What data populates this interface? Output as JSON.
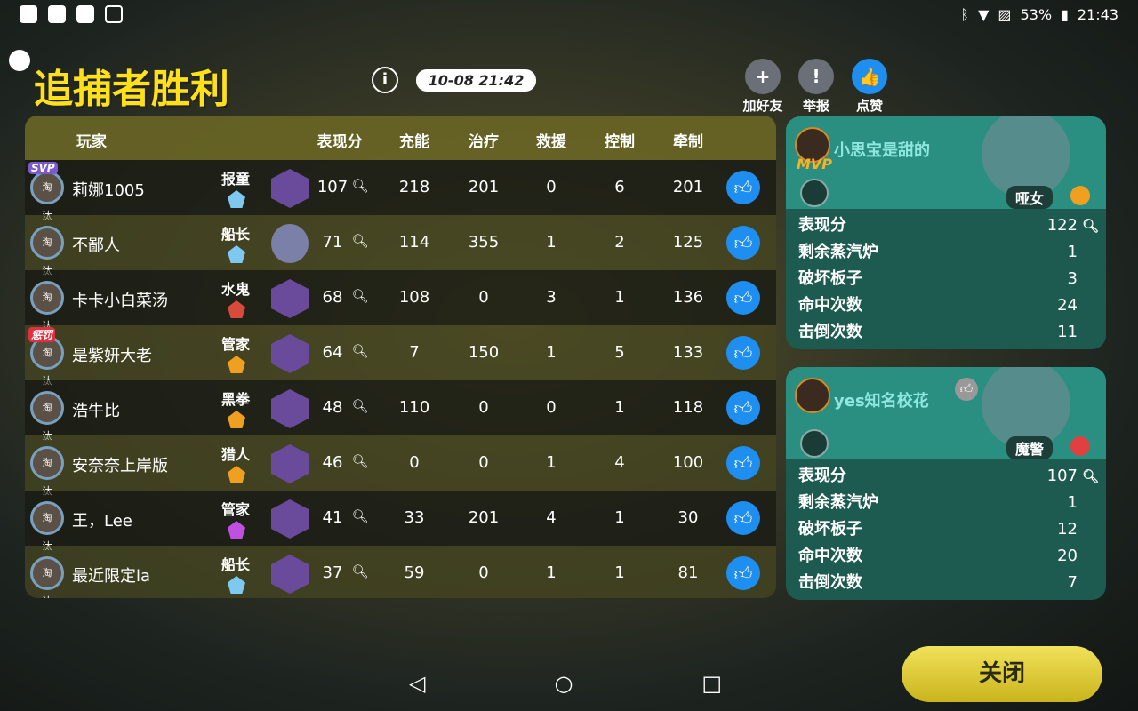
{
  "status": {
    "battery": "53%",
    "time": "21:43"
  },
  "title": "追捕者胜利",
  "match_time": "10-08  21:42",
  "top_actions": [
    {
      "label": "加好友",
      "icon": "add-friend-icon"
    },
    {
      "label": "举报",
      "icon": "report-icon"
    },
    {
      "label": "点赞",
      "icon": "thumbs-up-icon"
    }
  ],
  "table": {
    "headers": [
      "玩家",
      "表现分",
      "充能",
      "治疗",
      "救援",
      "控制",
      "牵制"
    ],
    "rows": [
      {
        "badge": "SVP",
        "status": "淘汰",
        "name": "莉娜1005",
        "role": "报童",
        "rank_color": "#7fc8f0",
        "score": "107",
        "charge": "218",
        "heal": "201",
        "rescue": "0",
        "control": "6",
        "contain": "201"
      },
      {
        "badge": "",
        "status": "淘汰",
        "name": "不鄙人",
        "role": "船长",
        "rank_color": "#7fc8f0",
        "score": "71",
        "charge": "114",
        "heal": "355",
        "rescue": "1",
        "control": "2",
        "contain": "125",
        "unknown": true
      },
      {
        "badge": "",
        "status": "淘汰",
        "name": "卡卡小白菜汤",
        "role": "水鬼",
        "rank_color": "#d84a3a",
        "score": "68",
        "charge": "108",
        "heal": "0",
        "rescue": "3",
        "control": "1",
        "contain": "136"
      },
      {
        "badge": "惩罚",
        "status": "淘汰",
        "name": "是紫妍大老",
        "role": "管家",
        "rank_color": "#f0a020",
        "score": "64",
        "charge": "7",
        "heal": "150",
        "rescue": "1",
        "control": "5",
        "contain": "133"
      },
      {
        "badge": "",
        "status": "淘汰",
        "name": "浩牛比",
        "role": "黑拳",
        "rank_color": "#f0a020",
        "score": "48",
        "charge": "110",
        "heal": "0",
        "rescue": "0",
        "control": "1",
        "contain": "118"
      },
      {
        "badge": "",
        "status": "淘汰",
        "name": "安奈奈上岸版",
        "role": "猎人",
        "rank_color": "#f0a020",
        "score": "46",
        "charge": "0",
        "heal": "0",
        "rescue": "1",
        "control": "4",
        "contain": "100"
      },
      {
        "badge": "",
        "status": "淘汰",
        "name": "王，Lee",
        "role": "管家",
        "rank_color": "#c050e0",
        "score": "41",
        "charge": "33",
        "heal": "201",
        "rescue": "4",
        "control": "1",
        "contain": "30"
      },
      {
        "badge": "",
        "status": "淘汰",
        "name": "最近限定la",
        "role": "船长",
        "rank_color": "#7fc8f0",
        "score": "37",
        "charge": "59",
        "heal": "0",
        "rescue": "1",
        "control": "1",
        "contain": "81"
      }
    ]
  },
  "hunters": [
    {
      "name": "小思宝是甜的",
      "badge": "MVP",
      "character": "哑女",
      "rank_color": "#f0a020",
      "stats": [
        {
          "label": "表现分",
          "value": "122"
        },
        {
          "label": "剩余蒸汽炉",
          "value": "1"
        },
        {
          "label": "破坏板子",
          "value": "3"
        },
        {
          "label": "命中次数",
          "value": "24"
        },
        {
          "label": "击倒次数",
          "value": "11"
        }
      ]
    },
    {
      "name": "yes知名校花",
      "badge": "",
      "character": "魔警",
      "rank_color": "#e04040",
      "stats": [
        {
          "label": "表现分",
          "value": "107"
        },
        {
          "label": "剩余蒸汽炉",
          "value": "1"
        },
        {
          "label": "破坏板子",
          "value": "12"
        },
        {
          "label": "命中次数",
          "value": "20"
        },
        {
          "label": "击倒次数",
          "value": "7"
        }
      ]
    }
  ],
  "close_label": "关闭",
  "colors": {
    "title": "#ffe11a",
    "like": "#1e8ff0",
    "card": "#1d5b50",
    "close": "#e8d84a"
  }
}
